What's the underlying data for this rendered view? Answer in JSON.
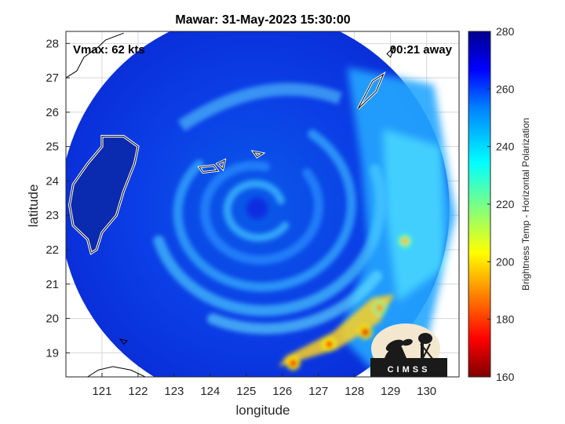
{
  "chart_data": {
    "type": "heatmap",
    "title": "Mawar: 31-May-2023 15:30:00",
    "xlabel": "longitude",
    "ylabel": "latitude",
    "xlim": [
      120.0,
      130.9
    ],
    "ylim": [
      18.3,
      28.35
    ],
    "xticks": [
      121,
      122,
      123,
      124,
      125,
      126,
      127,
      128,
      129,
      130
    ],
    "yticks": [
      19,
      20,
      21,
      22,
      23,
      24,
      25,
      26,
      27,
      28
    ],
    "grid": true,
    "annotations": {
      "vmax": "Vmax: 62 kts",
      "time_away": "00:21 away"
    },
    "storm_center": [
      125.3,
      23.2
    ],
    "swath_radius_deg": 5.4,
    "colorbar": {
      "label": "Brightness Temp - Horizontal Polarization",
      "min": 160,
      "max": 280,
      "ticks": [
        160,
        180,
        200,
        220,
        240,
        260,
        280
      ],
      "colormap": "jet"
    },
    "logo_text": "CIMSS",
    "hotspots": [
      {
        "lon": 129.4,
        "lat": 22.25,
        "value": 195
      },
      {
        "lon": 128.3,
        "lat": 19.6,
        "value": 170
      },
      {
        "lon": 127.3,
        "lat": 19.25,
        "value": 175
      },
      {
        "lon": 126.3,
        "lat": 18.7,
        "value": 172
      },
      {
        "lon": 128.7,
        "lat": 20.3,
        "value": 190
      }
    ]
  }
}
